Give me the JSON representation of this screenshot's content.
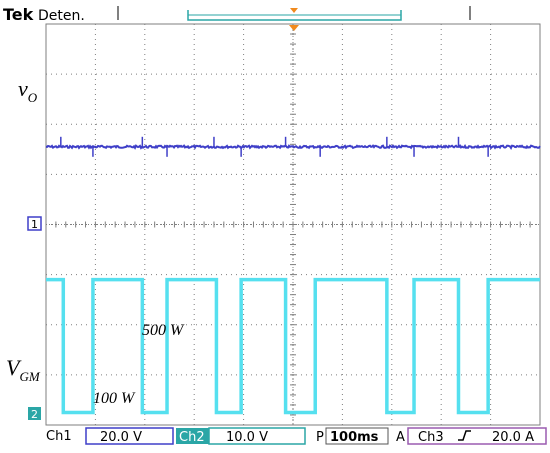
{
  "header": {
    "brand": "Tek",
    "status": "Deten."
  },
  "labels": {
    "vo_main": "v",
    "vo_sub": "O",
    "vgm_main": "V",
    "vgm_sub": "GM",
    "high_power": "500 W",
    "low_power": "100 W"
  },
  "markers": {
    "ch1": "1",
    "ch2": "2"
  },
  "footer": {
    "ch1_name": "Ch1",
    "ch1_scale": "20.0 V",
    "ch2_name": "Ch2",
    "ch2_scale": "10.0 V",
    "time_prefix": "P",
    "time_scale": "100ms",
    "trigger_prefix": "A",
    "trigger_channel": "Ch3",
    "trigger_level": "20.0 A"
  },
  "colors": {
    "ch1_trace": "#3f3fc8",
    "ch2_trace": "#55e0ef",
    "ch2_badge": "#2aa6a6",
    "grid": "#7f7f7f",
    "trigger_marker": "#f08a1e"
  },
  "chart_data": {
    "type": "line",
    "grid": {
      "divisions_x": 10,
      "divisions_y": 8,
      "on": true
    },
    "series": [
      {
        "name": "v_O",
        "description": "dc output voltage, nearly constant with small spikes at load transitions",
        "level_div": 1.55,
        "spike_times_div": [
          0.3,
          0.95,
          1.95,
          2.45,
          3.4,
          3.95,
          4.85,
          5.55,
          6.9,
          7.45,
          8.35,
          8.95
        ]
      },
      {
        "name": "V_GM",
        "description": "load step signal alternating between 100 W and 500 W",
        "high_div": -1.1,
        "low_div": -3.75,
        "transitions_div": [
          0.35,
          0.95,
          1.95,
          2.45,
          3.45,
          3.95,
          4.85,
          5.45,
          6.9,
          7.45,
          8.35,
          8.95
        ],
        "start_state": "high"
      }
    ]
  }
}
